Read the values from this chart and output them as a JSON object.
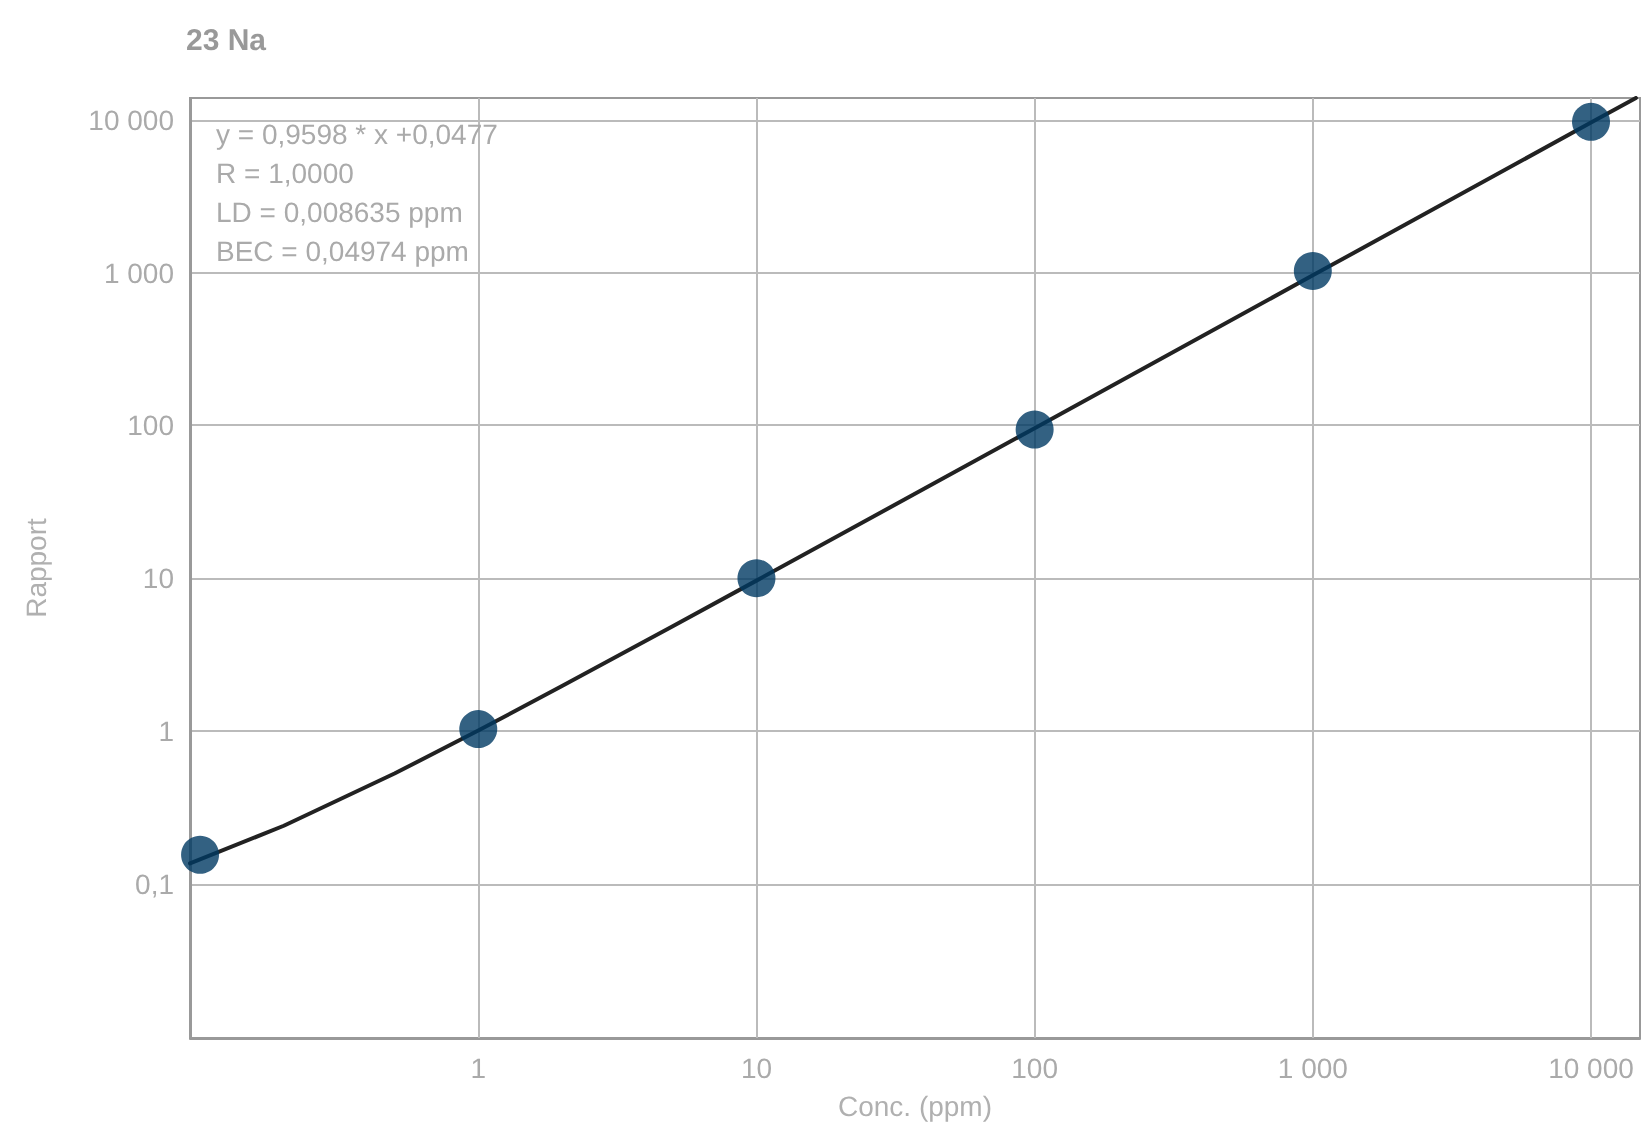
{
  "chart_data": {
    "type": "scatter",
    "title": "23 Na",
    "xlabel": "Conc. (ppm)",
    "ylabel": "Rapport",
    "log": "xy",
    "grid": true,
    "marker": "circle",
    "xlim": [
      0.092,
      15000
    ],
    "ylim": [
      0.0098,
      13900
    ],
    "xticks": [
      1,
      10,
      100,
      {
        "value": 1000,
        "label": "1 000"
      },
      {
        "value": 10000,
        "label": "10 000"
      }
    ],
    "yticks": [
      {
        "value": 0.1,
        "label": "0,1"
      },
      1,
      10,
      100,
      {
        "value": 1000,
        "label": "1 000"
      },
      {
        "value": 10000,
        "label": "10 000"
      }
    ],
    "annotations": [
      "y = 0,9598 * x +0,0477",
      "R = 1,0000",
      "LD = 0,008635 ppm",
      "BEC = 0,04974 ppm"
    ],
    "series": [
      {
        "color": "#003a63",
        "x": [
          0.1,
          1,
          10,
          100,
          1000,
          10000
        ],
        "values": [
          0.155,
          1.03,
          10,
          94,
          1025,
          9700
        ]
      },
      {
        "type": "line",
        "color": "#222222",
        "marker": "none",
        "x": [
          0.092,
          0.2,
          0.5,
          1,
          2,
          5,
          10,
          100,
          1000,
          10000,
          14500
        ],
        "values": [
          0.136,
          0.24,
          0.527,
          1.007,
          1.97,
          4.85,
          9.65,
          96,
          960,
          9598,
          13900
        ]
      }
    ]
  }
}
